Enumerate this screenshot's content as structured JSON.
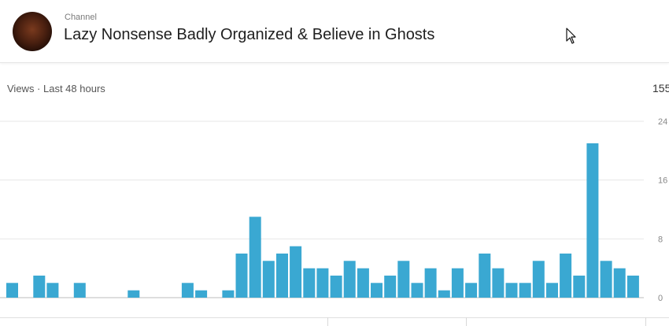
{
  "header": {
    "kicker": "Channel",
    "title": "Lazy Nonsense Badly Organized & Believe in Ghosts"
  },
  "card": {
    "views_label": "Views · Last 48 hours",
    "total": "155"
  },
  "colors": {
    "bar": "#3aa8d2",
    "grid": "#e7e7e7",
    "axis_text": "#888888"
  },
  "chart_data": {
    "type": "bar",
    "title": "",
    "xlabel": "",
    "ylabel": "",
    "ylim": [
      0,
      24
    ],
    "yticks": [
      0,
      8,
      16,
      24
    ],
    "grid": true,
    "values": [
      2,
      0,
      3,
      2,
      0,
      2,
      0,
      0,
      0,
      1,
      0,
      0,
      0,
      2,
      1,
      0,
      1,
      6,
      11,
      5,
      6,
      7,
      4,
      4,
      3,
      5,
      4,
      2,
      3,
      5,
      2,
      4,
      1,
      4,
      2,
      6,
      4,
      2,
      2,
      5,
      2,
      6,
      3,
      21,
      5,
      4,
      3
    ]
  }
}
